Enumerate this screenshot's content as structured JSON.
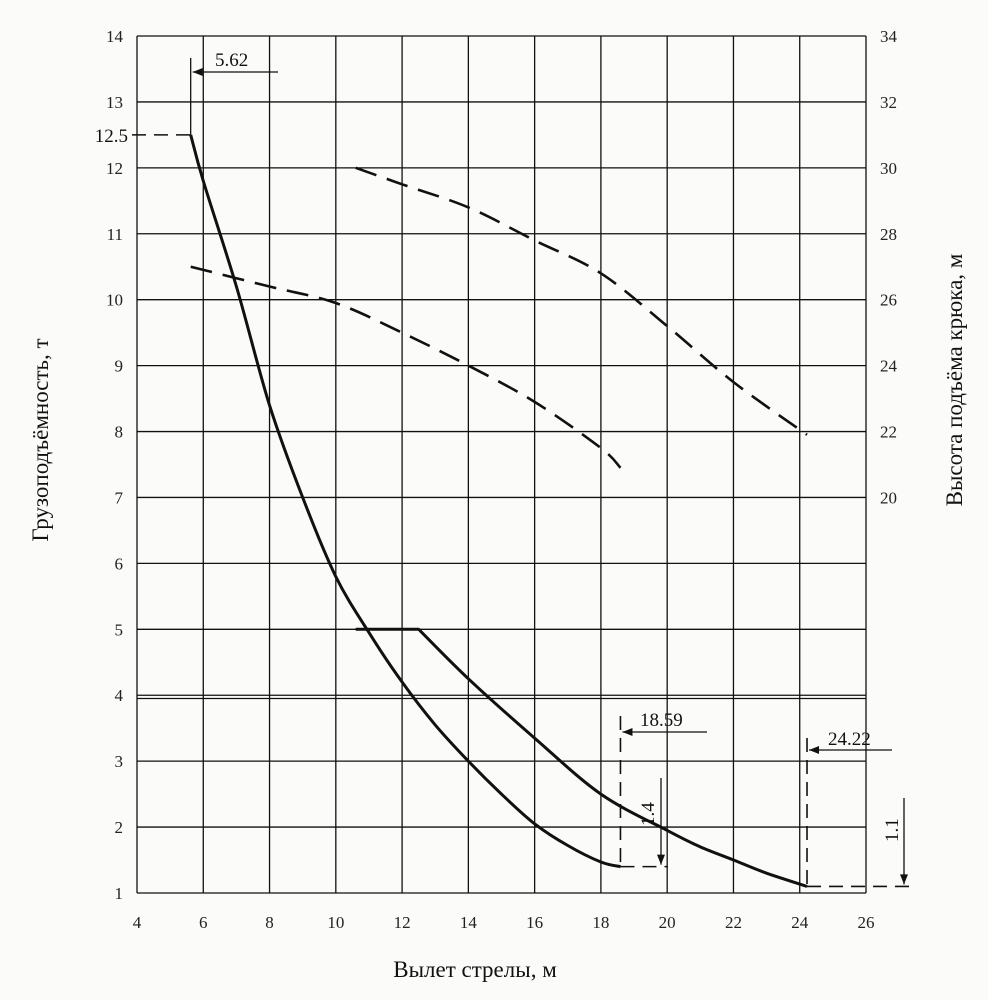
{
  "chart_data": {
    "type": "line",
    "xlabel": "Вылет стрелы, м",
    "ylabel_left": "Грузоподъёмность, т",
    "ylabel_right": "Высота подъёма крюка, м",
    "xlim": [
      4,
      26
    ],
    "ylim_left": [
      1,
      14
    ],
    "ylim_right": [
      34,
      8
    ],
    "x_ticks": [
      "4",
      "6",
      "8",
      "10",
      "12",
      "14",
      "16",
      "18",
      "20",
      "22",
      "24",
      "26"
    ],
    "y_left_ticks": [
      "1",
      "2",
      "3",
      "4",
      "5",
      "6",
      "7",
      "8",
      "9",
      "10",
      "11",
      "12",
      "13",
      "14"
    ],
    "y_right_ticks": [
      "20",
      "22",
      "24",
      "26",
      "28",
      "30",
      "32",
      "34"
    ],
    "grid": true,
    "series": [
      {
        "name": "capacity-short-boom",
        "axis": "left",
        "style": "solid",
        "x": [
          5.62,
          6,
          7,
          8,
          9,
          10,
          11,
          12,
          13,
          14,
          15,
          16,
          17,
          18,
          18.59
        ],
        "y": [
          12.5,
          11.8,
          10.2,
          8.4,
          7.0,
          5.8,
          4.95,
          4.2,
          3.55,
          3.0,
          2.5,
          2.05,
          1.72,
          1.47,
          1.4
        ]
      },
      {
        "name": "capacity-long-boom",
        "axis": "left",
        "style": "solid",
        "x": [
          10.6,
          12.5,
          14,
          16,
          18,
          20,
          21,
          22,
          23,
          24.22
        ],
        "y": [
          5.0,
          5.0,
          4.25,
          3.35,
          2.5,
          1.95,
          1.7,
          1.5,
          1.3,
          1.1
        ]
      },
      {
        "name": "hook-height-short-boom",
        "axis": "right",
        "style": "dashed",
        "x": [
          5.62,
          8,
          10,
          12,
          14,
          16,
          18,
          18.59
        ],
        "y": [
          27.0,
          26.4,
          25.9,
          25.0,
          24.0,
          22.9,
          21.5,
          20.9
        ]
      },
      {
        "name": "hook-height-long-boom",
        "axis": "right",
        "style": "dashed",
        "x": [
          10.6,
          12,
          14,
          16,
          18,
          20,
          22,
          24.22
        ],
        "y": [
          30.0,
          29.5,
          28.8,
          27.8,
          26.8,
          25.2,
          23.5,
          21.9
        ]
      }
    ],
    "annotations": [
      {
        "label": "5.62",
        "x": 5.62,
        "kind": "min-radius"
      },
      {
        "label": "12.5",
        "y": 12.5,
        "kind": "max-capacity"
      },
      {
        "label": "18.59",
        "x": 18.59,
        "kind": "max-radius-short-boom"
      },
      {
        "label": "24.22",
        "x": 24.22,
        "kind": "max-radius-long-boom"
      },
      {
        "label": "1.4",
        "y": 1.4,
        "kind": "min-capacity-short-boom"
      },
      {
        "label": "1.1",
        "y": 1.1,
        "kind": "min-capacity-long-boom"
      }
    ]
  }
}
